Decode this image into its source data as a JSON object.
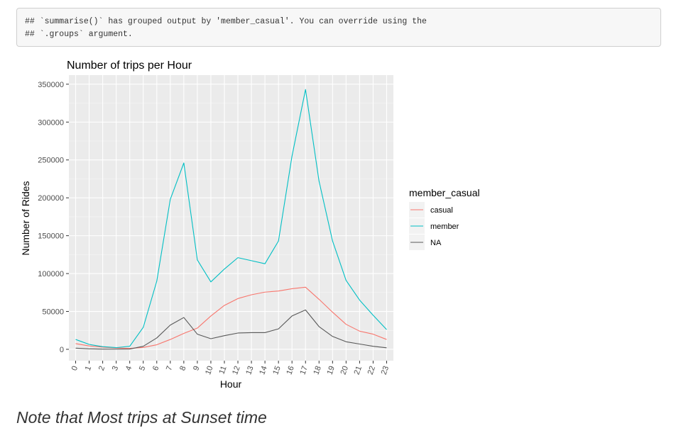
{
  "code_output": {
    "lines": [
      "## `summarise()` has grouped output by 'member_casual'. You can override using the",
      "## `.groups` argument."
    ]
  },
  "note": "Note that Most trips at Sunset time",
  "chart_data": {
    "type": "line",
    "title": "Number of trips per Hour",
    "xlabel": "Hour",
    "ylabel": "Number of Rides",
    "x": [
      0,
      1,
      2,
      3,
      4,
      5,
      6,
      7,
      8,
      9,
      10,
      11,
      12,
      13,
      14,
      15,
      16,
      17,
      18,
      19,
      20,
      21,
      22,
      23
    ],
    "x_tick_labels": [
      "0",
      "1",
      "2",
      "3",
      "4",
      "5",
      "6",
      "7",
      "8",
      "9",
      "10",
      "11",
      "12",
      "13",
      "14",
      "15",
      "16",
      "17",
      "18",
      "19",
      "20",
      "21",
      "22",
      "23"
    ],
    "ylim": [
      -15000,
      362000
    ],
    "y_ticks": [
      0,
      50000,
      100000,
      150000,
      200000,
      250000,
      300000,
      350000
    ],
    "y_tick_labels": [
      "0",
      "50000",
      "100000",
      "150000",
      "200000",
      "250000",
      "300000",
      "350000"
    ],
    "grid": true,
    "legend_title": "member_casual",
    "legend_position": "right",
    "series": [
      {
        "name": "casual",
        "color": "#F8766D",
        "values": [
          7500,
          4500,
          2800,
          1800,
          1200,
          2500,
          6000,
          13000,
          21000,
          28000,
          44000,
          58000,
          67000,
          72000,
          75500,
          77000,
          80000,
          82000,
          66000,
          49000,
          33000,
          24000,
          20000,
          13000
        ]
      },
      {
        "name": "member",
        "color": "#00BFC4",
        "values": [
          13000,
          6500,
          3500,
          2200,
          4000,
          29000,
          90000,
          198000,
          246000,
          118000,
          89000,
          106000,
          121000,
          117000,
          113000,
          143000,
          255000,
          343000,
          222000,
          143000,
          91000,
          65000,
          45000,
          26000
        ]
      },
      {
        "name": "NA",
        "color": "#595959",
        "values": [
          1500,
          600,
          300,
          200,
          400,
          4000,
          15000,
          32000,
          42000,
          20000,
          14000,
          18000,
          21500,
          22000,
          22000,
          27000,
          44000,
          52000,
          30000,
          17000,
          10000,
          7000,
          4000,
          2000
        ]
      }
    ]
  }
}
